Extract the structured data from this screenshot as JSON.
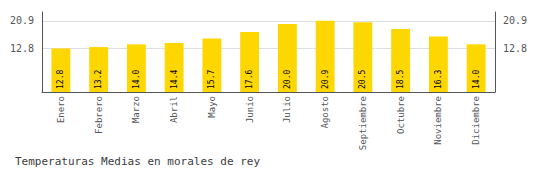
{
  "chart_data": {
    "type": "bar",
    "title": "Temperaturas Medias en morales de rey",
    "categories": [
      "Enero",
      "Febrero",
      "Marzo",
      "Abril",
      "Mayo",
      "Junio",
      "Julio",
      "Agosto",
      "Septiembre",
      "Octubre",
      "Noviembre",
      "Diciembre"
    ],
    "values": [
      12.8,
      13.2,
      14.0,
      14.4,
      15.7,
      17.6,
      20.0,
      20.9,
      20.5,
      18.5,
      16.3,
      14.0
    ],
    "value_labels": [
      "12.8",
      "13.2",
      "14.0",
      "14.4",
      "15.7",
      "17.6",
      "20.0",
      "20.9",
      "20.5",
      "18.5",
      "16.3",
      "14.0"
    ],
    "data_labels": true,
    "color": "#FFD700",
    "ylim": [
      0,
      23.5
    ],
    "yticks": [
      12.8,
      20.9
    ],
    "y2lim": [
      0,
      23.5
    ],
    "y2ticks": [
      12.8,
      20.9
    ],
    "grid": true
  }
}
